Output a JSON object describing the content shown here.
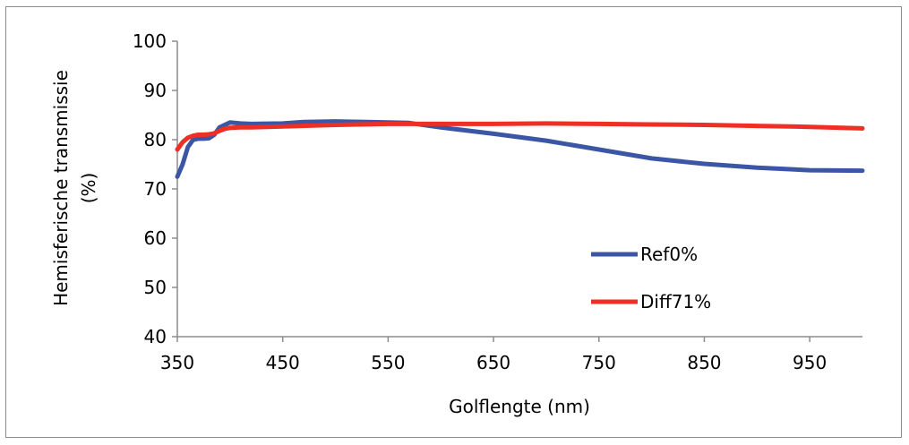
{
  "chart_data": {
    "type": "line",
    "title": "",
    "xlabel": "Golflengte (nm)",
    "ylabel_line1": "Hemisferische transmissie",
    "ylabel_line2": "(%)",
    "xlim": [
      350,
      1000
    ],
    "ylim": [
      40,
      100
    ],
    "x_ticks": [
      350,
      450,
      550,
      650,
      750,
      850,
      950
    ],
    "y_ticks": [
      40,
      50,
      60,
      70,
      80,
      90,
      100
    ],
    "grid": false,
    "legend_position": "lower-right",
    "series": [
      {
        "name": "Ref0%",
        "color": "#3c56a6",
        "x": [
          350,
          355,
          360,
          365,
          370,
          375,
          380,
          385,
          390,
          395,
          400,
          410,
          420,
          450,
          470,
          500,
          530,
          550,
          570,
          600,
          650,
          700,
          750,
          800,
          850,
          900,
          950,
          1000
        ],
        "y": [
          72.5,
          75,
          78.5,
          80,
          80.2,
          80.2,
          80.3,
          81,
          82.5,
          83,
          83.5,
          83.3,
          83.2,
          83.3,
          83.6,
          83.7,
          83.6,
          83.5,
          83.4,
          82.5,
          81.2,
          79.8,
          78,
          76.2,
          75.1,
          74.3,
          73.8,
          73.7
        ]
      },
      {
        "name": "Diff71%",
        "color": "#ee2f25",
        "x": [
          350,
          355,
          360,
          365,
          370,
          375,
          380,
          385,
          390,
          395,
          400,
          410,
          420,
          450,
          500,
          550,
          600,
          650,
          700,
          750,
          800,
          850,
          900,
          950,
          1000
        ],
        "y": [
          78,
          79.5,
          80.4,
          80.8,
          81,
          81,
          81.1,
          81.3,
          81.8,
          82.2,
          82.4,
          82.5,
          82.5,
          82.7,
          83,
          83.2,
          83.2,
          83.2,
          83.3,
          83.2,
          83.1,
          83,
          82.8,
          82.6,
          82.3
        ]
      }
    ]
  }
}
